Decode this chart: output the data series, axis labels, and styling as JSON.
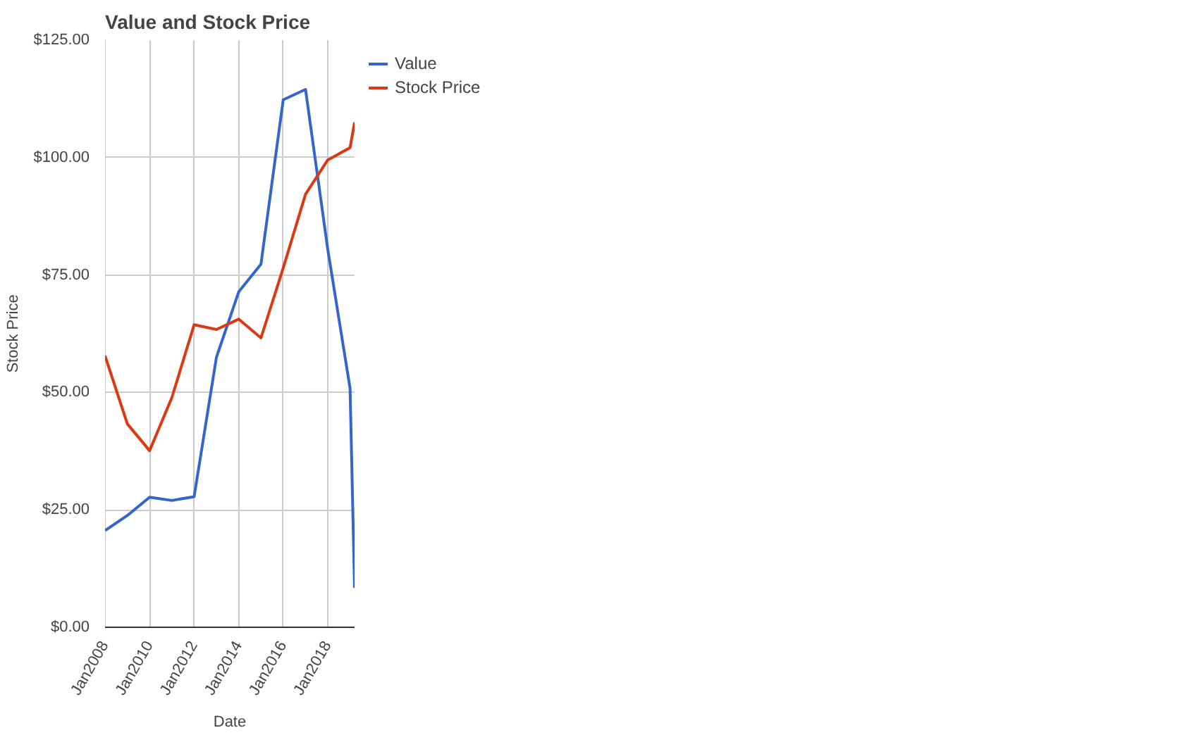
{
  "chart_data": {
    "type": "line",
    "title": "Value and Stock Price",
    "xlabel": "Date",
    "ylabel": "Stock Price",
    "x": [
      "2007-12-31",
      "2008-12-31",
      "2009-12-31",
      "2010-12-31",
      "2011-12-31",
      "2012-12-31",
      "2013-12-31",
      "2014-12-31",
      "2015-12-31",
      "2016-12-31",
      "2017-12-31",
      "2018-12-31",
      "2019-03-15"
    ],
    "series": [
      {
        "name": "Value",
        "color": "#3366cc",
        "values": [
          20.6,
          23.8,
          27.7,
          27.0,
          27.8,
          57.5,
          71.4,
          77.3,
          112.3,
          114.5,
          80.4,
          50.9,
          8.4
        ]
      },
      {
        "name": "Stock Price",
        "color": "#dc3912",
        "values": [
          57.8,
          43.3,
          37.6,
          48.9,
          64.4,
          63.4,
          65.6,
          61.6,
          76.5,
          92.2,
          99.5,
          102.1,
          107.5
        ]
      }
    ],
    "xlim": [
      "2007-12-31",
      "2019-03-15"
    ],
    "xticks": [
      {
        "value": "2008-01-01",
        "label": "Jan2008"
      },
      {
        "value": "2010-01-01",
        "label": "Jan2010"
      },
      {
        "value": "2012-01-01",
        "label": "Jan2012"
      },
      {
        "value": "2014-01-01",
        "label": "Jan2014"
      },
      {
        "value": "2016-01-01",
        "label": "Jan2016"
      },
      {
        "value": "2018-01-01",
        "label": "Jan2018"
      }
    ],
    "ylim": [
      0,
      125
    ],
    "yticks": [
      {
        "value": 0,
        "label": "$0.00"
      },
      {
        "value": 25,
        "label": "$25.00"
      },
      {
        "value": 50,
        "label": "$50.00"
      },
      {
        "value": 75,
        "label": "$75.00"
      },
      {
        "value": 100,
        "label": "$100.00"
      },
      {
        "value": 125,
        "label": "$125.00"
      }
    ],
    "grid": true,
    "legend": "top right"
  }
}
